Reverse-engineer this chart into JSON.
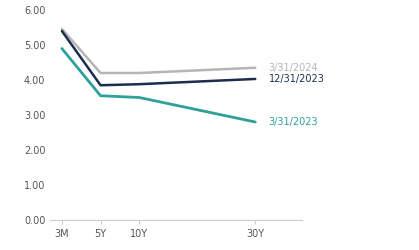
{
  "x_labels": [
    "3M",
    "5Y",
    "10Y",
    "30Y"
  ],
  "x_positions": [
    0,
    1,
    2,
    5
  ],
  "series": [
    {
      "label": "3/31/2024",
      "values": [
        5.46,
        4.2,
        4.2,
        4.35
      ],
      "color": "#b5b5b5",
      "linewidth": 1.8
    },
    {
      "label": "12/31/2023",
      "values": [
        5.4,
        3.85,
        3.88,
        4.03
      ],
      "color": "#1c2d4f",
      "linewidth": 1.8
    },
    {
      "label": "3/31/2023",
      "values": [
        4.9,
        3.55,
        3.5,
        2.8
      ],
      "color": "#2da099",
      "linewidth": 2.0
    }
  ],
  "ylim": [
    0.0,
    6.0
  ],
  "yticks": [
    0.0,
    1.0,
    2.0,
    3.0,
    4.0,
    5.0,
    6.0
  ],
  "label_colors": {
    "3/31/2024": "#b5b5b5",
    "12/31/2023": "#1c2d4f",
    "3/31/2023": "#2da099"
  },
  "label_y_positions": {
    "3/31/2024": 4.35,
    "12/31/2023": 4.03,
    "3/31/2023": 2.8
  },
  "background_color": "#ffffff",
  "font_size_ticks": 7,
  "font_size_labels": 7
}
